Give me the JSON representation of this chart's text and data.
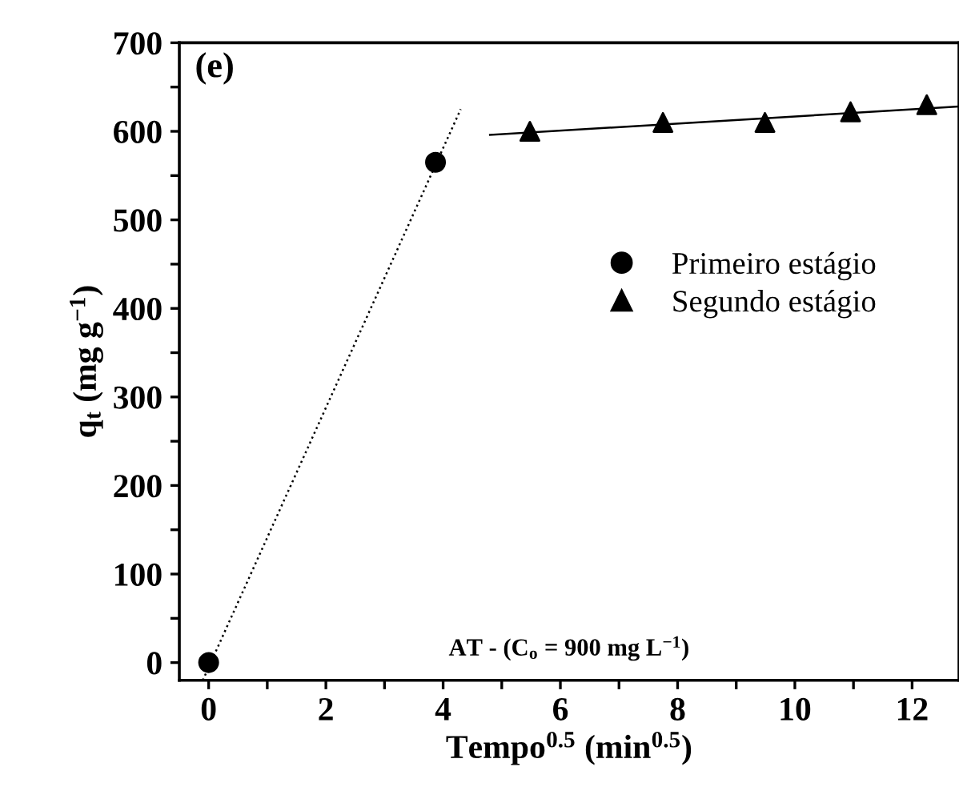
{
  "chart_data": {
    "type": "scatter",
    "xlabel": "Tempo$^{0.5}$ (min$^{0.5}$)",
    "ylabel": "q$_{t}$ (mg g$^{−1}$)",
    "annotations": [
      "(e)",
      "AT - (C$_{o}$ = 900 mg L$^{−1}$)"
    ],
    "xlim": [
      -0.5,
      12.8
    ],
    "ylim": [
      -20,
      700
    ],
    "xticks": [
      0,
      {
        "value": 1,
        "label": null
      },
      2,
      {
        "value": 3,
        "label": null
      },
      4,
      {
        "value": 5,
        "label": null
      },
      6,
      {
        "value": 7,
        "label": null
      },
      8,
      {
        "value": 9,
        "label": null
      },
      10,
      {
        "value": 11,
        "label": null
      },
      12
    ],
    "yticks": [
      0,
      {
        "value": 50,
        "label": null
      },
      100,
      {
        "value": 150,
        "label": null
      },
      200,
      {
        "value": 250,
        "label": null
      },
      300,
      {
        "value": 350,
        "label": null
      },
      400,
      {
        "value": 450,
        "label": null
      },
      500,
      {
        "value": 550,
        "label": null
      },
      600,
      {
        "value": 650,
        "label": null
      },
      700
    ],
    "grid": false,
    "legend": "right",
    "series": [
      {
        "name": "Primeiro estágio",
        "marker": "circle",
        "color": "#000000",
        "x": [
          0,
          3.87
        ],
        "values": [
          0,
          565
        ]
      },
      {
        "name": "Segundo estágio",
        "marker": "triangle",
        "color": "#000000",
        "x": [
          5.48,
          7.75,
          9.49,
          10.95,
          12.25
        ],
        "values": [
          600,
          610,
          610,
          622,
          630
        ]
      },
      {
        "type": "line",
        "line_style": "dotted",
        "color": "#000000",
        "x": [
          -0.1,
          4.3
        ],
        "values": [
          -20,
          625
        ]
      },
      {
        "type": "line",
        "line_style": "solid",
        "color": "#000000",
        "x": [
          4.8,
          12.8
        ],
        "values": [
          596,
          628
        ]
      }
    ]
  }
}
